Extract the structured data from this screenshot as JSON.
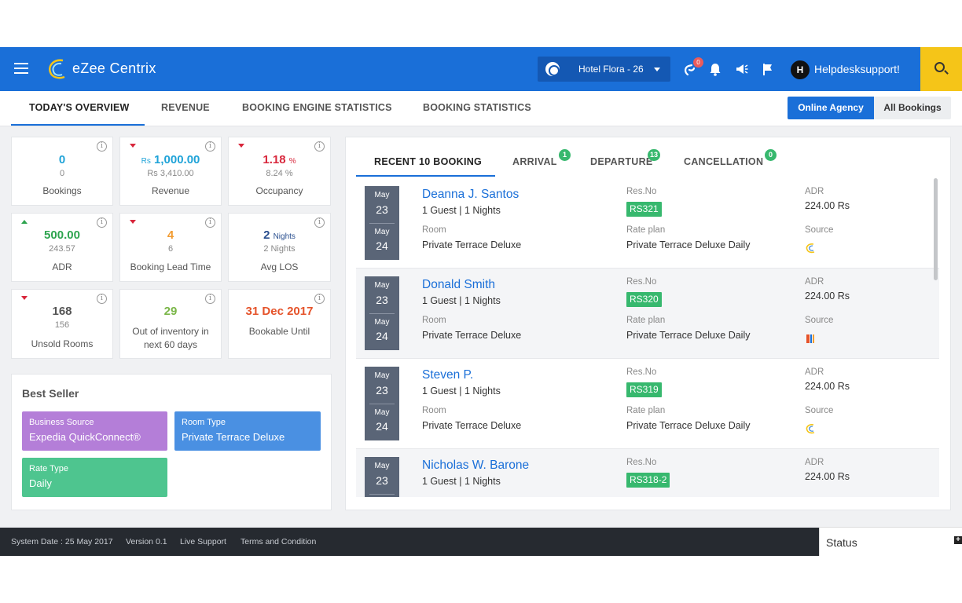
{
  "app": {
    "brand": "eZee Centrix"
  },
  "topbar": {
    "hotel": "Hotel Flora - 26",
    "notification_count": "0",
    "username": "Helpdesksupport!",
    "avatar_letter": "H"
  },
  "tabs": [
    "TODAY'S OVERVIEW",
    "REVENUE",
    "BOOKING ENGINE STATISTICS",
    "BOOKING STATISTICS"
  ],
  "segment": {
    "online": "Online Agency",
    "all": "All Bookings"
  },
  "kpis": {
    "bookings": {
      "value": "0",
      "prev": "0",
      "label": "Bookings"
    },
    "revenue": {
      "currency": "Rs",
      "value": "1,000.00",
      "prev": "Rs 3,410.00",
      "label": "Revenue"
    },
    "occupancy": {
      "value": "1.18",
      "unit": "%",
      "prev": "8.24 %",
      "label": "Occupancy"
    },
    "adr": {
      "value": "500.00",
      "prev": "243.57",
      "label": "ADR"
    },
    "lead_time": {
      "value": "4",
      "prev": "6",
      "label": "Booking Lead Time"
    },
    "avg_los": {
      "value": "2",
      "unit": "Nights",
      "prev": "2 Nights",
      "label": "Avg LOS"
    },
    "unsold": {
      "value": "168",
      "prev": "156",
      "label": "Unsold Rooms"
    },
    "out_inventory": {
      "value": "29",
      "label": "Out of inventory in next 60 days"
    },
    "bookable": {
      "value": "31 Dec 2017",
      "label": "Bookable Until"
    }
  },
  "best_seller": {
    "title": "Best Seller",
    "business_source": {
      "label": "Business Source",
      "value": "Expedia QuickConnect®"
    },
    "room_type": {
      "label": "Room Type",
      "value": "Private Terrace Deluxe"
    },
    "rate_type": {
      "label": "Rate Type",
      "value": "Daily"
    }
  },
  "panel_tabs": {
    "recent": "RECENT 10 BOOKING",
    "arrival": "ARRIVAL",
    "arrival_count": "1",
    "departure": "DEPARTURE",
    "departure_count": "13",
    "cancellation": "CANCELLATION",
    "cancellation_count": "0"
  },
  "field_labels": {
    "res_no": "Res.No",
    "adr": "ADR",
    "room": "Room",
    "rate_plan": "Rate plan",
    "source": "Source"
  },
  "bookings": [
    {
      "month1": "May",
      "day1": "23",
      "month2": "May",
      "day2": "24",
      "name": "Deanna J. Santos",
      "guests": "1 Guest | 1 Nights",
      "res_no": "RS321",
      "adr": "224.00 Rs",
      "room": "Private Terrace Deluxe",
      "rate_plan": "Private Terrace Deluxe Daily",
      "source_icon": "ezee-logo-icon"
    },
    {
      "month1": "May",
      "day1": "23",
      "month2": "May",
      "day2": "24",
      "name": "Donald Smith",
      "guests": "1 Guest | 1 Nights",
      "res_no": "RS320",
      "adr": "224.00 Rs",
      "room": "Private Terrace Deluxe",
      "rate_plan": "Private Terrace Deluxe Daily",
      "source_icon": "travel-agent-icon"
    },
    {
      "month1": "May",
      "day1": "23",
      "month2": "May",
      "day2": "24",
      "name": "Steven P.",
      "guests": "1 Guest | 1 Nights",
      "res_no": "RS319",
      "adr": "224.00 Rs",
      "room": "Private Terrace Deluxe",
      "rate_plan": "Private Terrace Deluxe Daily",
      "source_icon": "ezee-logo-icon"
    },
    {
      "month1": "May",
      "day1": "23",
      "name": "Nicholas W. Barone",
      "guests": "1 Guest | 1 Nights",
      "res_no": "RS318-2",
      "adr": "224.00 Rs"
    }
  ],
  "footer": {
    "system_date": "System Date : 25 May 2017",
    "version": "Version 0.1",
    "live_support": "Live Support",
    "terms": "Terms and Condition",
    "status": "Status"
  },
  "colors": {
    "primary": "#1a6fd8",
    "accent": "#f5c518",
    "positive": "#2ea44f",
    "negative": "#d8263b",
    "badge_green": "#37b86e"
  }
}
